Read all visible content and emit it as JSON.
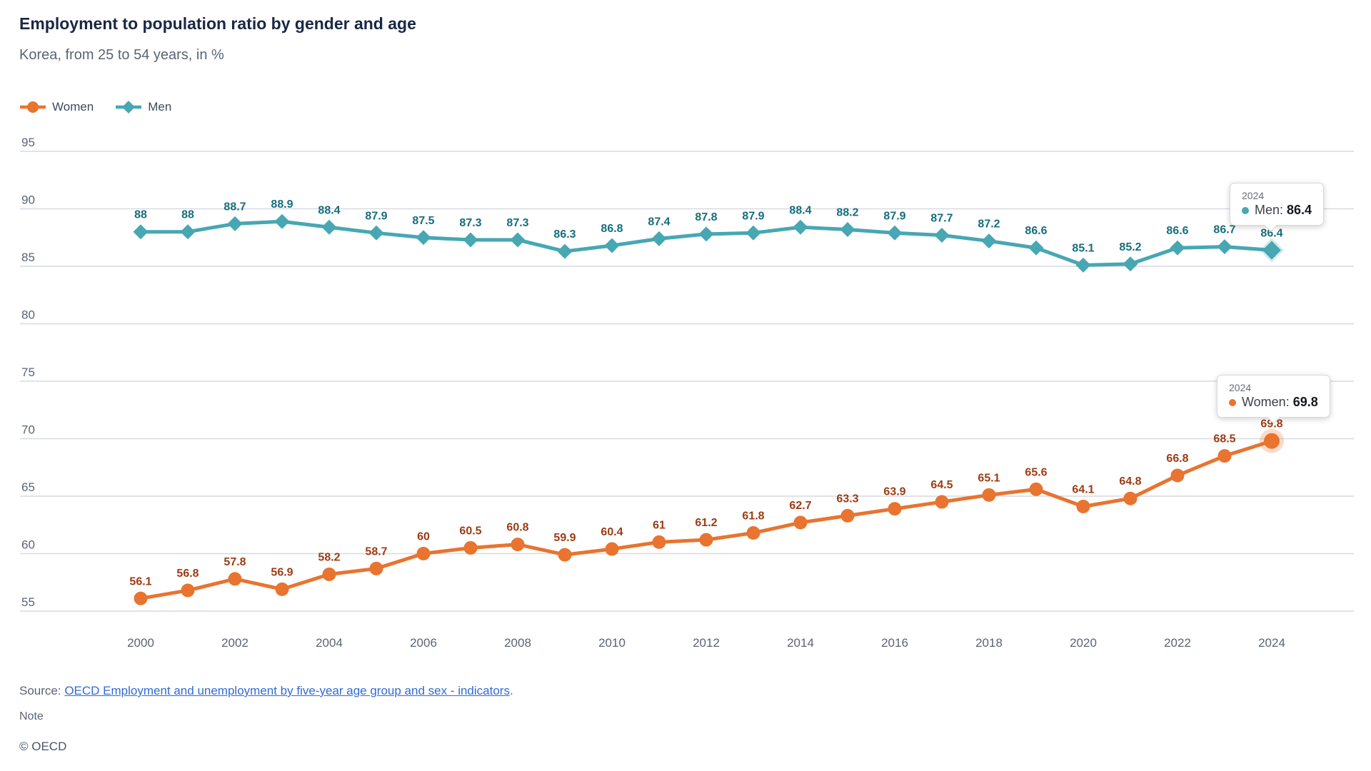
{
  "chart_data": {
    "type": "line",
    "title": "Employment to population ratio by gender and age",
    "subtitle": "Korea, from 25 to 54 years, in %",
    "x": [
      2000,
      2001,
      2002,
      2003,
      2004,
      2005,
      2006,
      2007,
      2008,
      2009,
      2010,
      2011,
      2012,
      2013,
      2014,
      2015,
      2016,
      2017,
      2018,
      2019,
      2020,
      2021,
      2022,
      2023,
      2024
    ],
    "xticks": [
      2000,
      2002,
      2004,
      2006,
      2008,
      2010,
      2012,
      2014,
      2016,
      2018,
      2020,
      2022,
      2024
    ],
    "yticks": [
      95,
      90,
      85,
      80,
      75,
      70,
      65,
      60,
      55
    ],
    "ylim": [
      55,
      95
    ],
    "grid": true,
    "legend_position": "top-left",
    "series": [
      {
        "name": "Women",
        "marker": "circle",
        "color": "#e8742f",
        "label_color": "#9c3b13",
        "values": [
          56.1,
          56.8,
          57.8,
          56.9,
          58.2,
          58.7,
          60,
          60.5,
          60.8,
          59.9,
          60.4,
          61,
          61.2,
          61.8,
          62.7,
          63.3,
          63.9,
          64.5,
          65.1,
          65.6,
          64.1,
          64.8,
          66.8,
          68.5,
          69.8
        ]
      },
      {
        "name": "Men",
        "marker": "diamond",
        "color": "#47a7b3",
        "label_color": "#166e7c",
        "values": [
          88,
          88,
          88.7,
          88.9,
          88.4,
          87.9,
          87.5,
          87.3,
          87.3,
          86.3,
          86.8,
          87.4,
          87.8,
          87.9,
          88.4,
          88.2,
          87.9,
          87.7,
          87.2,
          86.6,
          85.1,
          85.2,
          86.6,
          86.7,
          86.4
        ]
      }
    ]
  },
  "legend": {
    "items": [
      {
        "label": "Women"
      },
      {
        "label": "Men"
      }
    ]
  },
  "tooltips": [
    {
      "year": "2024",
      "label": "Men: ",
      "value": "86.4",
      "color": "#47a7b3"
    },
    {
      "year": "2024",
      "label": "Women: ",
      "value": "69.8",
      "color": "#e8742f"
    }
  ],
  "footer": {
    "source_label": "Source: ",
    "source_link_text": "OECD Employment and unemployment by five-year age group and sex - indicators",
    "source_period": ".",
    "note": "Note",
    "copyright": "© OECD"
  },
  "colors": {
    "grid": "#d7dae2",
    "axis_text": "#5a6477",
    "title": "#1a2744",
    "subtitle": "#5a6477",
    "link": "#2f6bd7"
  }
}
